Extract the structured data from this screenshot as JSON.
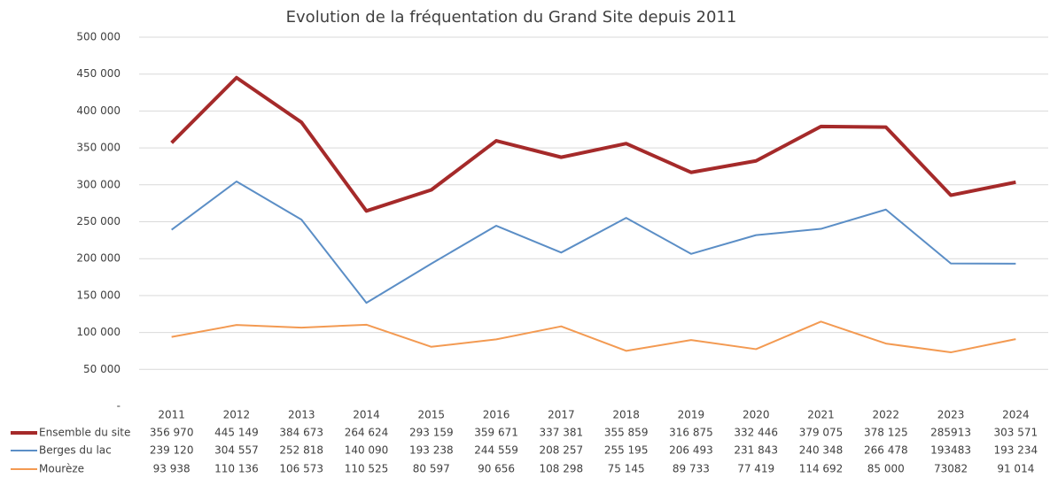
{
  "chart_data": {
    "type": "line",
    "title": "Evolution de la fréquentation du Grand Site depuis 2011",
    "categories": [
      "2011",
      "2012",
      "2013",
      "2014",
      "2015",
      "2016",
      "2017",
      "2018",
      "2019",
      "2020",
      "2021",
      "2022",
      "2023",
      "2024"
    ],
    "series": [
      {
        "name": "Ensemble du site",
        "color": "#a52a2a",
        "width": 4,
        "values": [
          356970,
          445149,
          384673,
          264624,
          293159,
          359671,
          337381,
          355859,
          316875,
          332446,
          379075,
          378125,
          285913,
          303571
        ],
        "value_labels": [
          "356 970",
          "445 149",
          "384 673",
          "264 624",
          "293 159",
          "359 671",
          "337 381",
          "355 859",
          "316 875",
          "332 446",
          "379 075",
          "378 125",
          "285913",
          "303 571"
        ]
      },
      {
        "name": "Berges du lac",
        "color": "#5b8ec6",
        "width": 2,
        "values": [
          239120,
          304557,
          252818,
          140090,
          193238,
          244559,
          208257,
          255195,
          206493,
          231843,
          240348,
          266478,
          193483,
          193234
        ],
        "value_labels": [
          "239 120",
          "304 557",
          "252 818",
          "140 090",
          "193 238",
          "244 559",
          "208 257",
          "255 195",
          "206 493",
          "231 843",
          "240 348",
          "266 478",
          "193483",
          "193 234"
        ]
      },
      {
        "name": "Mourèze",
        "color": "#f39a52",
        "width": 2,
        "values": [
          93938,
          110136,
          106573,
          110525,
          80597,
          90656,
          108298,
          75145,
          89733,
          77419,
          114692,
          85000,
          73082,
          91014
        ],
        "value_labels": [
          "93 938",
          "110 136",
          "106 573",
          "110 525",
          "80 597",
          "90 656",
          "108 298",
          "75 145",
          "89 733",
          "77 419",
          "114 692",
          "85 000",
          "73082",
          "91 014"
        ]
      }
    ],
    "ylim": [
      0,
      500000
    ],
    "yticks": [
      {
        "value": 0,
        "label": "-"
      },
      {
        "value": 50000,
        "label": "50 000"
      },
      {
        "value": 100000,
        "label": "100 000"
      },
      {
        "value": 150000,
        "label": "150 000"
      },
      {
        "value": 200000,
        "label": "200 000"
      },
      {
        "value": 250000,
        "label": "250 000"
      },
      {
        "value": 300000,
        "label": "300 000"
      },
      {
        "value": 350000,
        "label": "350 000"
      },
      {
        "value": 400000,
        "label": "400 000"
      },
      {
        "value": 450000,
        "label": "450 000"
      },
      {
        "value": 500000,
        "label": "500 000"
      }
    ],
    "grid": true
  }
}
